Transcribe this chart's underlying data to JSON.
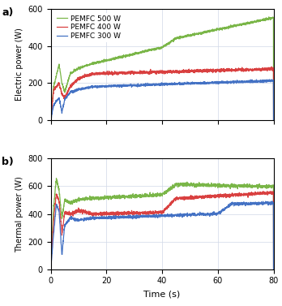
{
  "title_a": "a)",
  "title_b": "b)",
  "xlabel": "Time (s)",
  "ylabel_a": "Electric power (W)",
  "ylabel_b": "Thermal power (W)",
  "legend_labels": [
    "PEMFC 500 W",
    "PEMFC 400 W",
    "PEMFC 300 W"
  ],
  "colors": [
    "#7ab648",
    "#d94040",
    "#4472c4"
  ],
  "xlim": [
    0,
    80
  ],
  "ylim_a": [
    0,
    600
  ],
  "ylim_b": [
    0,
    800
  ],
  "yticks_a": [
    0,
    200,
    400,
    600
  ],
  "yticks_b": [
    0,
    200,
    400,
    600,
    800
  ],
  "xticks": [
    0,
    20,
    40,
    60,
    80
  ],
  "grid_color": "#d0d8e8",
  "linewidth": 0.9,
  "seed": 42
}
